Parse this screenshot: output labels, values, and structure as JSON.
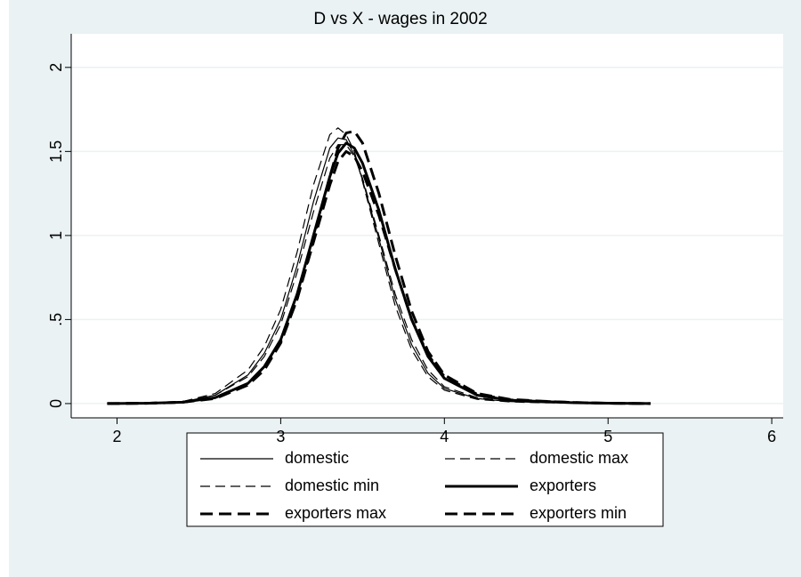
{
  "chart_data": {
    "type": "line",
    "title": "D vs X - wages in 2002",
    "x": [
      1.94,
      2.2,
      2.4,
      2.6,
      2.8,
      2.9,
      3.0,
      3.1,
      3.2,
      3.3,
      3.35,
      3.4,
      3.45,
      3.5,
      3.6,
      3.7,
      3.8,
      3.9,
      4.0,
      4.2,
      4.4,
      4.6,
      4.8,
      5.0,
      5.26
    ],
    "series": [
      {
        "name": "domestic",
        "color": "#000000",
        "line_width": 1.2,
        "dash": "solid",
        "values": [
          0,
          0.002,
          0.01,
          0.05,
          0.17,
          0.3,
          0.5,
          0.82,
          1.2,
          1.52,
          1.58,
          1.57,
          1.48,
          1.33,
          0.98,
          0.62,
          0.35,
          0.18,
          0.09,
          0.03,
          0.012,
          0.006,
          0.003,
          0.001,
          0
        ]
      },
      {
        "name": "domestic max",
        "color": "#000000",
        "line_width": 1.2,
        "dash": "dashed",
        "values": [
          0,
          0.002,
          0.012,
          0.06,
          0.2,
          0.34,
          0.56,
          0.9,
          1.3,
          1.6,
          1.64,
          1.6,
          1.5,
          1.32,
          0.95,
          0.58,
          0.32,
          0.16,
          0.08,
          0.025,
          0.01,
          0.005,
          0.002,
          0.001,
          0
        ]
      },
      {
        "name": "domestic min",
        "color": "#000000",
        "line_width": 1.2,
        "dash": "dashed",
        "values": [
          0,
          0.002,
          0.01,
          0.05,
          0.16,
          0.28,
          0.47,
          0.78,
          1.14,
          1.46,
          1.54,
          1.54,
          1.47,
          1.34,
          1.0,
          0.65,
          0.38,
          0.2,
          0.1,
          0.035,
          0.014,
          0.007,
          0.003,
          0.001,
          0
        ]
      },
      {
        "name": "exporters",
        "color": "#000000",
        "line_width": 3,
        "dash": "solid",
        "values": [
          0,
          0.002,
          0.008,
          0.035,
          0.12,
          0.22,
          0.38,
          0.65,
          1.0,
          1.35,
          1.49,
          1.55,
          1.52,
          1.43,
          1.15,
          0.8,
          0.5,
          0.28,
          0.15,
          0.05,
          0.02,
          0.012,
          0.005,
          0.002,
          0
        ]
      },
      {
        "name": "exporters max",
        "color": "#000000",
        "line_width": 3,
        "dash": "dashed",
        "values": [
          0,
          0.002,
          0.008,
          0.03,
          0.11,
          0.2,
          0.36,
          0.62,
          0.98,
          1.35,
          1.52,
          1.61,
          1.62,
          1.55,
          1.25,
          0.88,
          0.55,
          0.31,
          0.17,
          0.06,
          0.025,
          0.014,
          0.006,
          0.002,
          0
        ]
      },
      {
        "name": "exporters min",
        "color": "#000000",
        "line_width": 3,
        "dash": "dashed",
        "values": [
          0,
          0.002,
          0.008,
          0.035,
          0.12,
          0.22,
          0.37,
          0.62,
          0.96,
          1.3,
          1.44,
          1.5,
          1.47,
          1.38,
          1.12,
          0.8,
          0.5,
          0.29,
          0.16,
          0.055,
          0.022,
          0.013,
          0.006,
          0.002,
          0
        ]
      }
    ],
    "xlim": [
      1.72,
      6.07
    ],
    "xticks": [
      2,
      3,
      4,
      5,
      6
    ],
    "ylim": [
      -0.085,
      2.2
    ],
    "yticks": [
      0,
      {
        "value": 0.5,
        "label": ".5"
      },
      1,
      {
        "value": 1.5,
        "label": "1.5"
      },
      2
    ],
    "grid": true,
    "legend": "bottom"
  }
}
